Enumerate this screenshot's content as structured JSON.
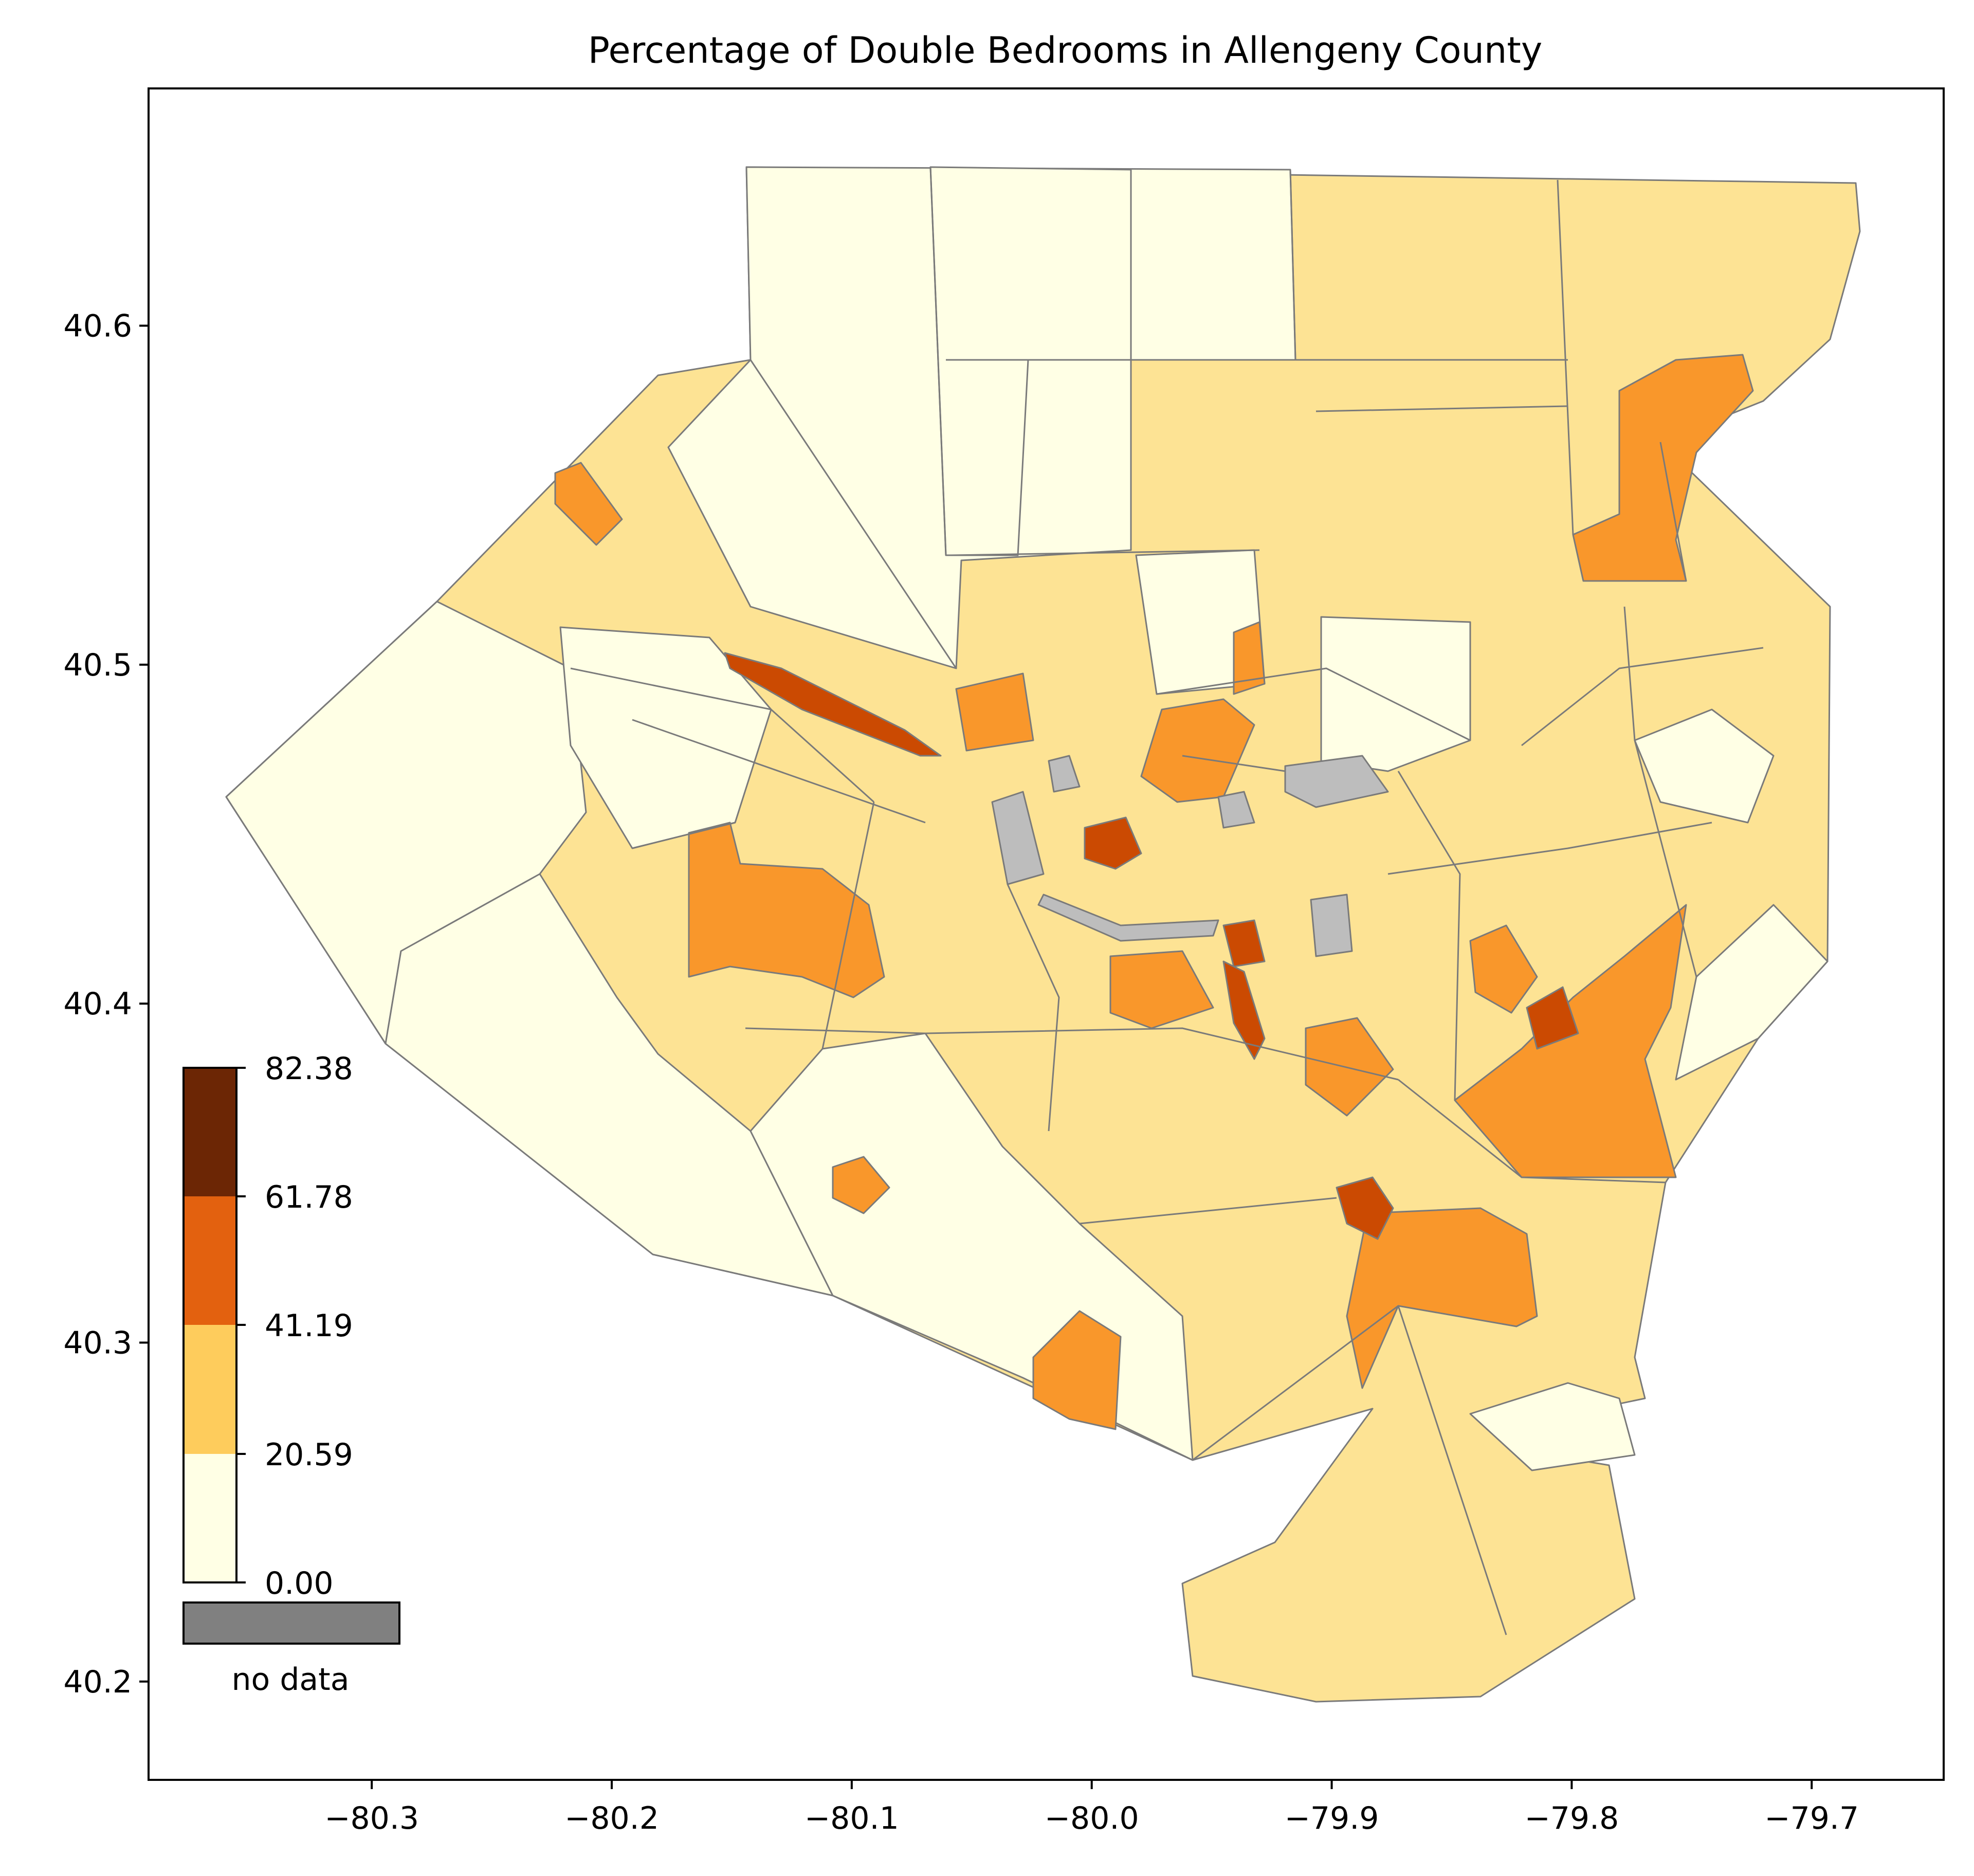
{
  "title": "Percentage of Double Bedrooms in Allengeny County",
  "axes": {
    "x_ticks": [
      "−80.3",
      "−80.2",
      "−80.1",
      "−80.0",
      "−79.9",
      "−79.8",
      "−79.7"
    ],
    "y_ticks": [
      "40.2",
      "40.3",
      "40.4",
      "40.5",
      "40.6"
    ],
    "x_tick_values": [
      -80.3,
      -80.2,
      -80.1,
      -80.0,
      -79.9,
      -79.8,
      -79.7
    ],
    "y_tick_values": [
      40.2,
      40.3,
      40.4,
      40.5,
      40.6
    ],
    "xlim": [
      -80.393,
      -79.645
    ],
    "ylim": [
      40.171,
      40.67
    ]
  },
  "legend": {
    "bin_edges": [
      "0.00",
      "20.59",
      "41.19",
      "61.78",
      "82.38"
    ],
    "bin_colors": [
      "#ffffe5",
      "#fecc5c",
      "#e3610f",
      "#6c2605"
    ],
    "no_data_label": "no data",
    "no_data_color": "#808080"
  },
  "map_colors": {
    "class1": "#ffffe5",
    "class2": "#fde394",
    "class3": "#f9972b",
    "class4": "#cb4a02",
    "no_data": "#bdbdbd",
    "border": "#7a7a7a"
  }
}
